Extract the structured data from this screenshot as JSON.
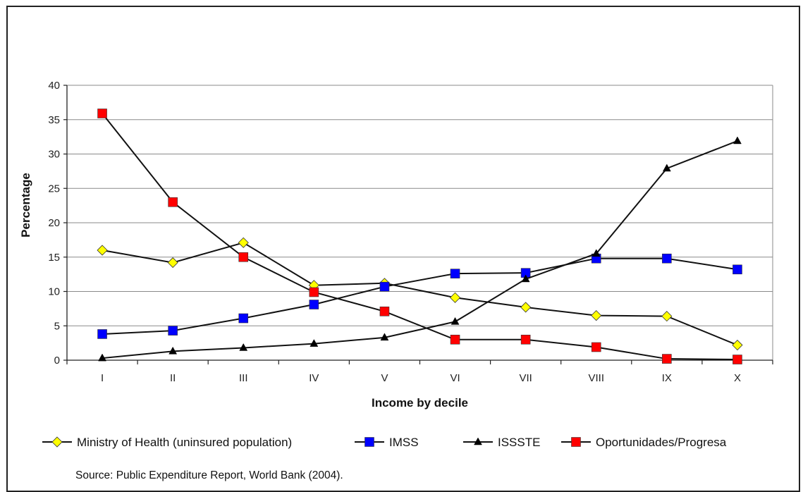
{
  "chart_data": {
    "type": "line",
    "title": "",
    "xlabel": "Income by decile",
    "ylabel": "Percentage",
    "ylim": [
      0,
      40
    ],
    "yticks": [
      0,
      5,
      10,
      15,
      20,
      25,
      30,
      35,
      40
    ],
    "grid": "horizontal",
    "legend_position": "bottom",
    "categories": [
      "I",
      "II",
      "III",
      "IV",
      "V",
      "VI",
      "VII",
      "VIII",
      "IX",
      "X"
    ],
    "series": [
      {
        "name": "Ministry of Health (uninsured population)",
        "marker": "diamond",
        "marker_color": "#ffff00",
        "line_color": "#111111",
        "values": [
          16,
          14.2,
          17.1,
          10.9,
          11.2,
          9.1,
          7.7,
          6.5,
          6.4,
          2.2
        ]
      },
      {
        "name": "IMSS",
        "marker": "square",
        "marker_color": "#0000ff",
        "line_color": "#111111",
        "values": [
          3.8,
          4.3,
          6.1,
          8.1,
          10.7,
          12.6,
          12.7,
          14.8,
          14.8,
          13.2
        ]
      },
      {
        "name": "ISSSTE",
        "marker": "triangle",
        "marker_color": "#000000",
        "line_color": "#111111",
        "values": [
          0.3,
          1.3,
          1.8,
          2.4,
          3.3,
          5.6,
          11.8,
          15.5,
          27.9,
          31.9
        ]
      },
      {
        "name": "Oportunidades/Progresa",
        "marker": "square",
        "marker_color": "#ff0000",
        "line_color": "#111111",
        "values": [
          35.9,
          23,
          15,
          9.9,
          7.1,
          3,
          3,
          1.9,
          0.2,
          0.1
        ]
      }
    ]
  },
  "source_note": "Source: Public Expenditure Report, World Bank (2004)."
}
